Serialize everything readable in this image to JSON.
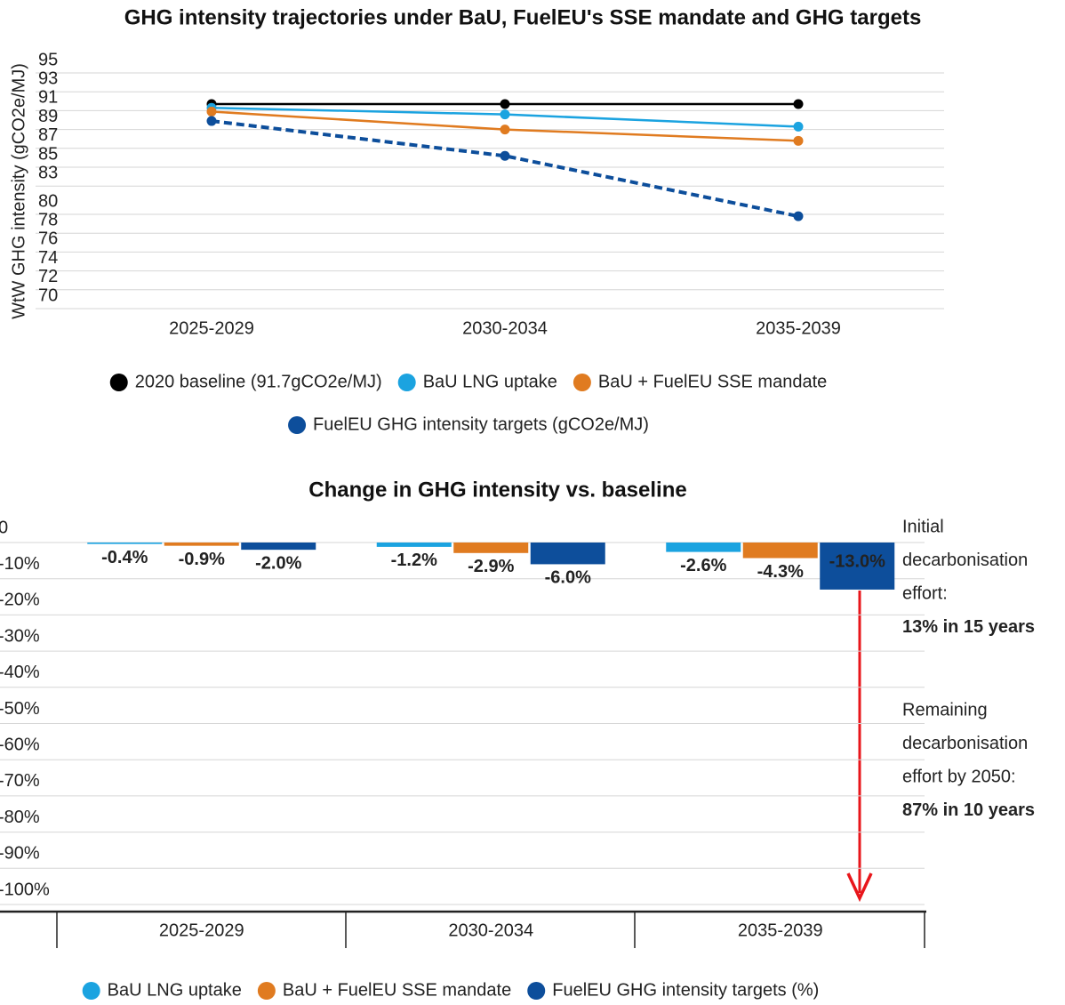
{
  "chart_data": [
    {
      "type": "line",
      "title": "GHG intensity trajectories under BaU, FuelEU's SSE mandate and GHG targets",
      "y_label": "WtW GHG intensity (gCO2e/MJ)",
      "categories": [
        "2025-2029",
        "2030-2034",
        "2035-2039"
      ],
      "series": [
        {
          "name": "2020 baseline (91.7gCO2e/MJ)",
          "color": "#000000",
          "values": [
            91.7,
            91.7,
            91.7
          ]
        },
        {
          "name": "BaU LNG uptake",
          "color": "#1ba3e0",
          "values": [
            91.3,
            90.6,
            89.3
          ]
        },
        {
          "name": "BaU + FuelEU SSE mandate",
          "color": "#e07b20",
          "values": [
            90.9,
            89.0,
            87.8
          ]
        },
        {
          "name": "FuelEU GHG intensity targets (gCO2e/MJ)",
          "color": "#0d4e9b",
          "values": [
            89.9,
            86.2,
            79.8
          ],
          "dashed": true
        }
      ],
      "ylim": [
        70,
        95
      ],
      "yticks": [
        95,
        93,
        91,
        89,
        87,
        85,
        83,
        80,
        78,
        76,
        74,
        72,
        70
      ],
      "grid": true,
      "legend": "bottom"
    },
    {
      "type": "bar",
      "title": "Change in GHG intensity vs. baseline",
      "categories": [
        "2025-2029",
        "2030-2034",
        "2035-2039"
      ],
      "series": [
        {
          "name": "BaU LNG uptake",
          "color": "#1ba3e0",
          "values": [
            -0.4,
            -1.2,
            -2.6
          ],
          "value_labels": [
            "-0.4%",
            "-1.2%",
            "-2.6%"
          ]
        },
        {
          "name": "BaU + FuelEU SSE mandate",
          "color": "#e07b20",
          "values": [
            -0.9,
            -2.9,
            -4.3
          ],
          "value_labels": [
            "-0.9%",
            "-2.9%",
            "-4.3%"
          ]
        },
        {
          "name": "FuelEU GHG intensity targets (%)",
          "color": "#0d4e9b",
          "values": [
            -2.0,
            -6.0,
            -13.0
          ],
          "value_labels": [
            "-2.0%",
            "-6.0%",
            "-13.0%"
          ]
        }
      ],
      "ylim": [
        -100,
        0
      ],
      "yticks": [
        0,
        {
          "value": -10,
          "label": "-10%"
        },
        {
          "value": -20,
          "label": "-20%"
        },
        {
          "value": -30,
          "label": "-30%"
        },
        {
          "value": -40,
          "label": "-40%"
        },
        {
          "value": -50,
          "label": "-50%"
        },
        {
          "value": -60,
          "label": "-60%"
        },
        {
          "value": -70,
          "label": "-70%"
        },
        {
          "value": -80,
          "label": "-80%"
        },
        {
          "value": -90,
          "label": "-90%"
        },
        {
          "value": -100,
          "label": "-100%"
        }
      ],
      "grid": true,
      "legend": "bottom",
      "annotations": [
        {
          "lines": [
            "Initial",
            "decarbonisation",
            "effort:"
          ],
          "highlight": "13% in 15 years",
          "color": "#1f4e9b"
        },
        {
          "lines": [
            "Remaining",
            "decarbonisation",
            "effort by 2050:"
          ],
          "highlight": "87% in 10 years",
          "color": "#e8161b"
        }
      ]
    }
  ]
}
